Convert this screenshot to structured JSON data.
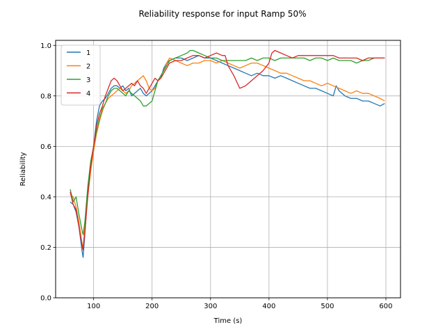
{
  "chart_data": {
    "type": "line",
    "title": "Reliability response for input Ramp 50%",
    "xlabel": "Time (s)",
    "ylabel": "Reliability",
    "xlim": [
      35,
      625
    ],
    "ylim": [
      0.0,
      1.02
    ],
    "xticks": [
      100,
      200,
      300,
      400,
      500,
      600
    ],
    "xtick_labels": [
      "100",
      "200",
      "300",
      "400",
      "500",
      "600"
    ],
    "yticks": [
      0.0,
      0.2,
      0.4,
      0.6,
      0.8,
      1.0
    ],
    "ytick_labels": [
      "0.0",
      "0.2",
      "0.4",
      "0.6",
      "0.8",
      "1.0"
    ],
    "grid": true,
    "legend_position": "top-left",
    "series": [
      {
        "name": "1",
        "color": "#1f77b4",
        "x": [
          60,
          65,
          70,
          75,
          80,
          82,
          85,
          90,
          95,
          100,
          105,
          110,
          115,
          120,
          125,
          130,
          135,
          140,
          145,
          150,
          155,
          160,
          165,
          170,
          175,
          180,
          185,
          190,
          195,
          200,
          205,
          210,
          215,
          220,
          225,
          230,
          240,
          250,
          260,
          270,
          280,
          290,
          300,
          310,
          320,
          330,
          340,
          350,
          360,
          370,
          380,
          390,
          400,
          410,
          420,
          430,
          440,
          450,
          460,
          470,
          480,
          490,
          500,
          510,
          515,
          520,
          530,
          540,
          550,
          560,
          570,
          580,
          590,
          598
        ],
        "y": [
          0.38,
          0.37,
          0.34,
          0.28,
          0.19,
          0.16,
          0.25,
          0.42,
          0.52,
          0.6,
          0.7,
          0.76,
          0.78,
          0.79,
          0.81,
          0.83,
          0.84,
          0.84,
          0.83,
          0.84,
          0.82,
          0.83,
          0.8,
          0.81,
          0.82,
          0.83,
          0.81,
          0.8,
          0.81,
          0.82,
          0.84,
          0.86,
          0.87,
          0.91,
          0.93,
          0.94,
          0.95,
          0.95,
          0.94,
          0.95,
          0.96,
          0.95,
          0.95,
          0.94,
          0.93,
          0.92,
          0.91,
          0.9,
          0.89,
          0.88,
          0.89,
          0.88,
          0.88,
          0.87,
          0.88,
          0.87,
          0.86,
          0.85,
          0.84,
          0.83,
          0.83,
          0.82,
          0.81,
          0.8,
          0.84,
          0.82,
          0.8,
          0.79,
          0.79,
          0.78,
          0.78,
          0.77,
          0.76,
          0.77
        ]
      },
      {
        "name": "2",
        "color": "#ff7f0e",
        "x": [
          60,
          65,
          70,
          75,
          80,
          82,
          85,
          90,
          95,
          100,
          105,
          110,
          115,
          120,
          125,
          130,
          135,
          140,
          145,
          150,
          155,
          160,
          165,
          170,
          175,
          180,
          185,
          190,
          195,
          200,
          205,
          210,
          215,
          220,
          225,
          230,
          240,
          250,
          260,
          270,
          280,
          290,
          300,
          310,
          320,
          330,
          340,
          350,
          360,
          370,
          380,
          390,
          400,
          410,
          420,
          430,
          440,
          450,
          460,
          470,
          480,
          490,
          500,
          510,
          520,
          530,
          540,
          550,
          560,
          570,
          580,
          590,
          598
        ],
        "y": [
          0.41,
          0.4,
          0.36,
          0.3,
          0.22,
          0.2,
          0.28,
          0.4,
          0.5,
          0.58,
          0.65,
          0.7,
          0.74,
          0.77,
          0.79,
          0.8,
          0.81,
          0.82,
          0.83,
          0.82,
          0.81,
          0.82,
          0.84,
          0.85,
          0.86,
          0.87,
          0.88,
          0.86,
          0.83,
          0.82,
          0.83,
          0.86,
          0.88,
          0.9,
          0.93,
          0.95,
          0.94,
          0.93,
          0.92,
          0.93,
          0.93,
          0.94,
          0.94,
          0.93,
          0.94,
          0.93,
          0.92,
          0.91,
          0.92,
          0.93,
          0.93,
          0.92,
          0.91,
          0.9,
          0.89,
          0.89,
          0.88,
          0.87,
          0.86,
          0.86,
          0.85,
          0.84,
          0.85,
          0.84,
          0.83,
          0.82,
          0.81,
          0.82,
          0.81,
          0.81,
          0.8,
          0.79,
          0.78
        ]
      },
      {
        "name": "3",
        "color": "#2ca02c",
        "x": [
          60,
          65,
          70,
          75,
          80,
          82,
          85,
          90,
          95,
          100,
          105,
          110,
          115,
          120,
          125,
          130,
          135,
          140,
          145,
          150,
          155,
          160,
          165,
          170,
          175,
          180,
          185,
          190,
          195,
          200,
          205,
          210,
          215,
          220,
          225,
          230,
          240,
          250,
          260,
          265,
          270,
          280,
          290,
          300,
          310,
          320,
          330,
          340,
          350,
          360,
          370,
          380,
          390,
          400,
          410,
          420,
          430,
          440,
          450,
          460,
          470,
          480,
          490,
          500,
          510,
          520,
          530,
          540,
          550,
          560,
          570,
          580,
          590,
          598
        ],
        "y": [
          0.43,
          0.38,
          0.4,
          0.33,
          0.27,
          0.25,
          0.3,
          0.44,
          0.54,
          0.6,
          0.66,
          0.71,
          0.75,
          0.77,
          0.8,
          0.82,
          0.83,
          0.83,
          0.82,
          0.81,
          0.8,
          0.82,
          0.81,
          0.8,
          0.79,
          0.78,
          0.76,
          0.76,
          0.77,
          0.78,
          0.82,
          0.86,
          0.88,
          0.9,
          0.92,
          0.94,
          0.95,
          0.96,
          0.97,
          0.98,
          0.98,
          0.97,
          0.96,
          0.95,
          0.95,
          0.94,
          0.94,
          0.94,
          0.94,
          0.94,
          0.95,
          0.94,
          0.95,
          0.95,
          0.94,
          0.95,
          0.95,
          0.95,
          0.95,
          0.95,
          0.94,
          0.95,
          0.95,
          0.94,
          0.95,
          0.94,
          0.94,
          0.94,
          0.93,
          0.94,
          0.94,
          0.95,
          0.95,
          0.95
        ]
      },
      {
        "name": "4",
        "color": "#d62728",
        "x": [
          60,
          65,
          70,
          75,
          80,
          82,
          85,
          90,
          95,
          100,
          105,
          110,
          115,
          120,
          125,
          130,
          135,
          140,
          145,
          150,
          155,
          160,
          165,
          170,
          175,
          180,
          185,
          190,
          195,
          200,
          205,
          210,
          215,
          220,
          225,
          230,
          240,
          250,
          260,
          270,
          280,
          290,
          300,
          310,
          320,
          325,
          330,
          340,
          350,
          360,
          370,
          380,
          390,
          400,
          405,
          410,
          420,
          430,
          440,
          450,
          460,
          470,
          480,
          490,
          500,
          510,
          520,
          530,
          540,
          550,
          560,
          570,
          580,
          590,
          598
        ],
        "y": [
          0.42,
          0.37,
          0.35,
          0.28,
          0.21,
          0.19,
          0.26,
          0.4,
          0.52,
          0.6,
          0.68,
          0.73,
          0.76,
          0.8,
          0.83,
          0.86,
          0.87,
          0.86,
          0.84,
          0.82,
          0.83,
          0.84,
          0.85,
          0.84,
          0.86,
          0.84,
          0.83,
          0.81,
          0.83,
          0.85,
          0.87,
          0.86,
          0.87,
          0.89,
          0.91,
          0.93,
          0.94,
          0.94,
          0.95,
          0.96,
          0.96,
          0.95,
          0.96,
          0.97,
          0.96,
          0.96,
          0.92,
          0.88,
          0.83,
          0.84,
          0.86,
          0.88,
          0.9,
          0.93,
          0.97,
          0.98,
          0.97,
          0.96,
          0.95,
          0.96,
          0.96,
          0.96,
          0.96,
          0.96,
          0.96,
          0.96,
          0.95,
          0.95,
          0.95,
          0.95,
          0.94,
          0.95,
          0.95,
          0.95,
          0.95
        ]
      }
    ]
  }
}
